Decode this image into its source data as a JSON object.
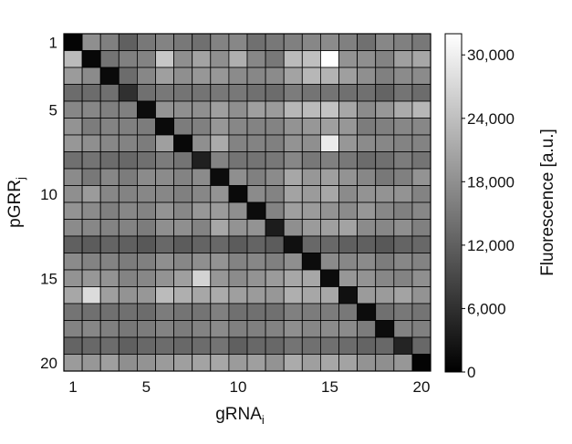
{
  "chart_data": {
    "type": "heatmap",
    "x": {
      "label_main": "gRNA",
      "label_sub": "i",
      "tick_labels": [
        "1",
        "5",
        "10",
        "15",
        "20"
      ],
      "tick_values": [
        1,
        5,
        10,
        15,
        20
      ],
      "range": [
        1,
        20
      ]
    },
    "y": {
      "label_main": "pGRR",
      "label_sub": "j",
      "tick_labels": [
        "1",
        "5",
        "10",
        "15",
        "20"
      ],
      "tick_values": [
        1,
        5,
        10,
        15,
        20
      ],
      "range": [
        1,
        20
      ],
      "direction": "top-to-bottom"
    },
    "colorbar": {
      "label": "Fluorescence [a.u.]",
      "tick_labels": [
        "0",
        "6,000",
        "12,000",
        "18,000",
        "24,000",
        "30,000"
      ],
      "tick_values": [
        0,
        6000,
        12000,
        18000,
        24000,
        30000
      ],
      "range": [
        0,
        32000
      ],
      "colormap": "grayscale",
      "low_color": "#000000",
      "high_color": "#ffffff"
    },
    "matrix_rows_pGRR_cols_gRNA": [
      [
        500,
        18000,
        16000,
        12000,
        15000,
        16500,
        15000,
        14000,
        16500,
        17000,
        14000,
        15000,
        16000,
        17000,
        17500,
        16000,
        14000,
        17000,
        16000,
        15000
      ],
      [
        23500,
        1000,
        14500,
        16000,
        16500,
        25000,
        18000,
        20500,
        18000,
        22000,
        17000,
        15000,
        23500,
        24000,
        32000,
        18500,
        18000,
        16500,
        20000,
        21000
      ],
      [
        19500,
        17500,
        1200,
        13500,
        17000,
        20000,
        18000,
        19000,
        19000,
        17500,
        17000,
        17500,
        20500,
        23000,
        22500,
        20000,
        18000,
        16000,
        17500,
        17500
      ],
      [
        13500,
        13500,
        14000,
        6000,
        14000,
        15000,
        14500,
        14500,
        15000,
        15000,
        14000,
        13500,
        15500,
        14500,
        14500,
        14000,
        14000,
        12500,
        14500,
        13500
      ],
      [
        17000,
        17000,
        16000,
        16000,
        1500,
        18500,
        18000,
        18000,
        20000,
        18000,
        20000,
        19500,
        23000,
        23500,
        24500,
        21000,
        17500,
        19000,
        21500,
        23000
      ],
      [
        18500,
        15500,
        16500,
        16000,
        15500,
        1200,
        15500,
        16000,
        19000,
        17000,
        16500,
        16500,
        18500,
        19000,
        20000,
        19000,
        15500,
        16000,
        17000,
        17000
      ],
      [
        19000,
        18000,
        17000,
        16500,
        15500,
        20000,
        1000,
        18000,
        21500,
        16500,
        16500,
        16000,
        18500,
        18000,
        29500,
        19000,
        17500,
        17000,
        16500,
        16500
      ],
      [
        14000,
        14500,
        13500,
        13000,
        14000,
        15500,
        14500,
        4000,
        16500,
        14500,
        14500,
        15000,
        17000,
        15000,
        16000,
        15000,
        13500,
        14000,
        15500,
        14500
      ],
      [
        17500,
        15000,
        17000,
        15500,
        17500,
        17500,
        16500,
        17500,
        1500,
        18000,
        16000,
        17500,
        21000,
        19000,
        20000,
        18500,
        17000,
        15000,
        16000,
        18500
      ],
      [
        18000,
        19500,
        17000,
        16500,
        17000,
        17000,
        16000,
        17000,
        18500,
        1200,
        17500,
        16500,
        20500,
        19500,
        21000,
        17500,
        18500,
        18500,
        18500,
        16500
      ],
      [
        18500,
        17500,
        16000,
        17000,
        16500,
        18500,
        17000,
        19000,
        19500,
        18000,
        1500,
        16500,
        20000,
        19500,
        18500,
        17500,
        19000,
        17000,
        16000,
        17000
      ],
      [
        17500,
        17000,
        16500,
        16500,
        15500,
        18000,
        18000,
        16500,
        21000,
        18500,
        18500,
        3500,
        18000,
        19500,
        20000,
        20500,
        17500,
        17000,
        18000,
        16000
      ],
      [
        12000,
        11500,
        12500,
        12000,
        11000,
        13000,
        11500,
        12500,
        13000,
        11500,
        12500,
        11500,
        2000,
        13000,
        13000,
        12000,
        12000,
        11000,
        12500,
        13000
      ],
      [
        17500,
        16500,
        16500,
        15500,
        16000,
        18000,
        17000,
        18000,
        18500,
        16500,
        17000,
        16000,
        18000,
        1500,
        17500,
        17000,
        17500,
        15500,
        17000,
        16500
      ],
      [
        18500,
        19000,
        18500,
        16500,
        17000,
        18500,
        20000,
        26500,
        19000,
        17500,
        18500,
        19500,
        21000,
        21000,
        1500,
        19000,
        18500,
        17000,
        16500,
        18000
      ],
      [
        21000,
        27500,
        20000,
        18500,
        19000,
        23500,
        22000,
        21000,
        21500,
        20000,
        19500,
        19000,
        22000,
        21000,
        21000,
        2000,
        19500,
        19500,
        20500,
        18500
      ],
      [
        14500,
        14000,
        14000,
        14000,
        13500,
        15500,
        14500,
        14500,
        16000,
        14000,
        14000,
        14000,
        16000,
        15500,
        15500,
        15000,
        1500,
        14000,
        15000,
        14500
      ],
      [
        16500,
        17000,
        16000,
        15000,
        15500,
        16500,
        15500,
        16500,
        17500,
        16000,
        16000,
        16500,
        18000,
        17000,
        17500,
        17500,
        15500,
        1500,
        16500,
        16000
      ],
      [
        12500,
        13000,
        13500,
        12000,
        13000,
        13500,
        13000,
        13500,
        14500,
        12000,
        13000,
        13000,
        14500,
        14000,
        14000,
        13500,
        12500,
        13000,
        4500,
        13000
      ],
      [
        19500,
        19000,
        20000,
        18000,
        18500,
        19500,
        20000,
        20500,
        21000,
        19500,
        20000,
        18500,
        21500,
        20000,
        21000,
        20500,
        18500,
        18000,
        19000,
        500
      ]
    ]
  }
}
